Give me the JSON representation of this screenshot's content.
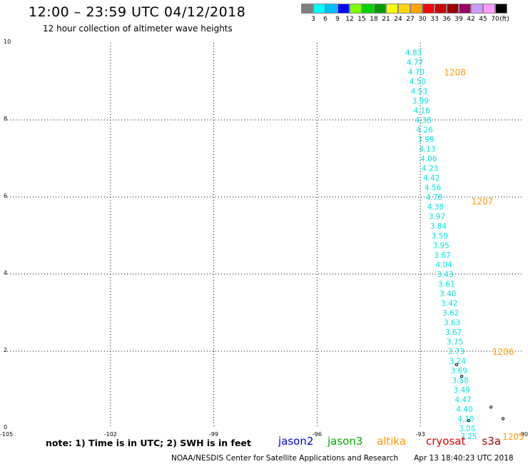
{
  "header": {
    "title": "12:00 – 23:59 UTC 04/12/2018",
    "subtitle": "12 hour collection of altimeter wave heights"
  },
  "colorbar": {
    "unit": "(ft)",
    "items": [
      {
        "label": "3",
        "color": "#7f7f7f"
      },
      {
        "label": "6",
        "color": "#00ffff"
      },
      {
        "label": "9",
        "color": "#00bfff"
      },
      {
        "label": "12",
        "color": "#0000ff"
      },
      {
        "label": "15",
        "color": "#7fff00"
      },
      {
        "label": "18",
        "color": "#00d400"
      },
      {
        "label": "21",
        "color": "#009900"
      },
      {
        "label": "24",
        "color": "#ffff00"
      },
      {
        "label": "27",
        "color": "#ffd700"
      },
      {
        "label": "30",
        "color": "#ffa500"
      },
      {
        "label": "33",
        "color": "#ff0000"
      },
      {
        "label": "36",
        "color": "#cc0000"
      },
      {
        "label": "39",
        "color": "#990000"
      },
      {
        "label": "42",
        "color": "#990066"
      },
      {
        "label": "45",
        "color": "#cc99ff"
      },
      {
        "label": "70",
        "color": "#ff99ff"
      },
      {
        "label": "",
        "color": "#000000"
      }
    ]
  },
  "chart_data": {
    "type": "scatter",
    "title": "12:00 – 23:59 UTC 04/12/2018",
    "xlim": [
      -105,
      -90
    ],
    "ylim": [
      0,
      10
    ],
    "x_ticks": [
      -105,
      -102,
      -99,
      -96,
      -93,
      -90
    ],
    "x_tick_labels": [
      "-105",
      "-102",
      "-99",
      "-96",
      "-93",
      "-90"
    ],
    "y_ticks": [
      0,
      2,
      4,
      6,
      8,
      10
    ],
    "y_tick_labels": [
      "0",
      "2",
      "4",
      "6",
      "8",
      "10"
    ],
    "grid": true,
    "series": [
      {
        "name": "jason3",
        "color": "#00e5e5",
        "points": [
          {
            "x": -93.2,
            "y": 9.75,
            "label": "4.83"
          },
          {
            "x": -93.16,
            "y": 9.5,
            "label": "4.77"
          },
          {
            "x": -93.12,
            "y": 9.25,
            "label": "4.70"
          },
          {
            "x": -93.08,
            "y": 9.0,
            "label": "4.50"
          },
          {
            "x": -93.04,
            "y": 8.75,
            "label": "4.53"
          },
          {
            "x": -93.0,
            "y": 8.5,
            "label": "3.99"
          },
          {
            "x": -92.96,
            "y": 8.25,
            "label": "4.16"
          },
          {
            "x": -92.92,
            "y": 8.0,
            "label": "4.38"
          },
          {
            "x": -92.88,
            "y": 7.75,
            "label": "4.26"
          },
          {
            "x": -92.84,
            "y": 7.5,
            "label": "3.99"
          },
          {
            "x": -92.8,
            "y": 7.25,
            "label": "4.13"
          },
          {
            "x": -92.76,
            "y": 7.0,
            "label": "4.06"
          },
          {
            "x": -92.72,
            "y": 6.75,
            "label": "4.23"
          },
          {
            "x": -92.68,
            "y": 6.5,
            "label": "4.42"
          },
          {
            "x": -92.64,
            "y": 6.25,
            "label": "4.56"
          },
          {
            "x": -92.6,
            "y": 6.0,
            "label": "4.78"
          },
          {
            "x": -92.56,
            "y": 5.75,
            "label": "4.38"
          },
          {
            "x": -92.52,
            "y": 5.5,
            "label": "3.97"
          },
          {
            "x": -92.48,
            "y": 5.25,
            "label": "3.84"
          },
          {
            "x": -92.44,
            "y": 5.0,
            "label": "3.59"
          },
          {
            "x": -92.4,
            "y": 4.75,
            "label": "3.95"
          },
          {
            "x": -92.36,
            "y": 4.5,
            "label": "3.67"
          },
          {
            "x": -92.32,
            "y": 4.25,
            "label": "4.04"
          },
          {
            "x": -92.28,
            "y": 4.0,
            "label": "3.43"
          },
          {
            "x": -92.24,
            "y": 3.75,
            "label": "3.61"
          },
          {
            "x": -92.2,
            "y": 3.5,
            "label": "3.40"
          },
          {
            "x": -92.16,
            "y": 3.25,
            "label": "3.42"
          },
          {
            "x": -92.12,
            "y": 3.0,
            "label": "3.62"
          },
          {
            "x": -92.08,
            "y": 2.75,
            "label": "3.63"
          },
          {
            "x": -92.04,
            "y": 2.5,
            "label": "3.67"
          },
          {
            "x": -92.0,
            "y": 2.25,
            "label": "3.75"
          },
          {
            "x": -91.96,
            "y": 2.0,
            "label": "3.73"
          },
          {
            "x": -91.92,
            "y": 1.75,
            "label": "3.24"
          },
          {
            "x": -91.88,
            "y": 1.5,
            "label": "3.69"
          },
          {
            "x": -91.84,
            "y": 1.25,
            "label": "3.58"
          },
          {
            "x": -91.8,
            "y": 1.0,
            "label": "3.49"
          },
          {
            "x": -91.76,
            "y": 0.75,
            "label": "4.47"
          },
          {
            "x": -91.72,
            "y": 0.5,
            "label": "4.40"
          },
          {
            "x": -91.68,
            "y": 0.25,
            "label": "4.10"
          },
          {
            "x": -91.64,
            "y": 0.0,
            "label": "3.06"
          },
          {
            "x": -91.6,
            "y": -0.2,
            "label": "3.25"
          }
        ]
      }
    ],
    "time_labels": [
      {
        "x": -92.0,
        "y": 9.25,
        "label": "1208"
      },
      {
        "x": -91.2,
        "y": 5.9,
        "label": "1207"
      },
      {
        "x": -90.6,
        "y": 2.0,
        "label": "1206"
      },
      {
        "x": -90.3,
        "y": -0.2,
        "label": "1205"
      }
    ],
    "markers": [
      {
        "x": -91.95,
        "y": 1.65
      },
      {
        "x": -91.8,
        "y": 1.35
      },
      {
        "x": -90.95,
        "y": 0.55
      },
      {
        "x": -90.6,
        "y": 0.25
      },
      {
        "x": -91.6,
        "y": 0.2
      }
    ]
  },
  "footer": {
    "note": "note: 1) Time is in UTC; 2) SWH is in feet",
    "satellites": [
      {
        "name": "jason2",
        "color": "#0000dd"
      },
      {
        "name": "jason3",
        "color": "#00aa00"
      },
      {
        "name": "altika",
        "color": "#ff9900"
      },
      {
        "name": "cryosat",
        "color": "#dd0000"
      },
      {
        "name": "s3a",
        "color": "#990000"
      }
    ],
    "credit": "NOAA/NESDIS Center for Satellite Applications and Research",
    "timestamp": "Apr 13 18:40:23 UTC 2018"
  }
}
